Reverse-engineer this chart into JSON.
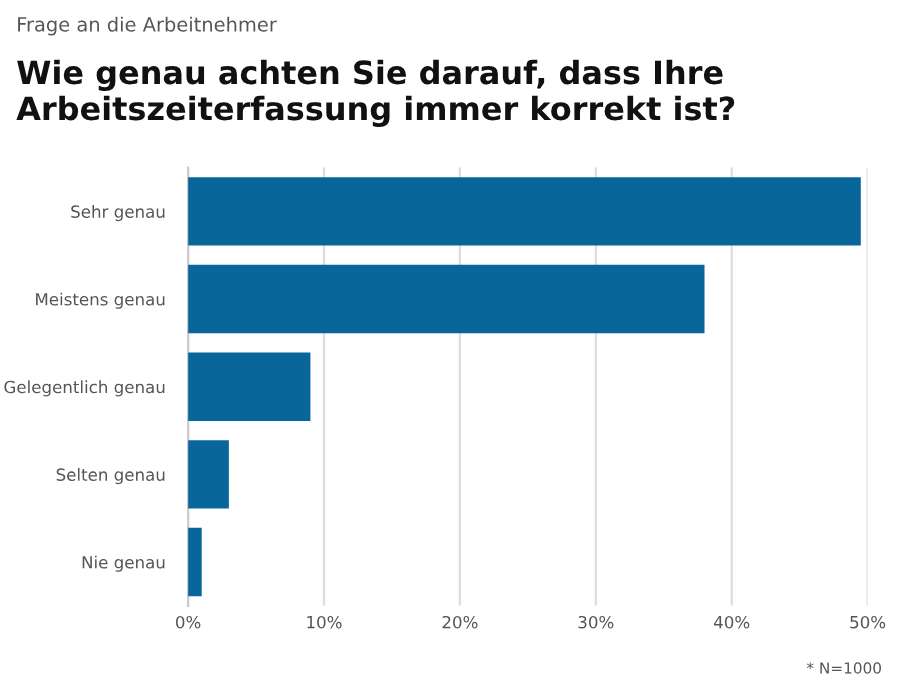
{
  "chart_data": {
    "type": "bar",
    "orientation": "horizontal",
    "subtitle": "Frage an die Arbeitnehmer",
    "title": "Wie genau achten Sie darauf, dass Ihre Arbeitszeiterfassung immer korrekt ist?",
    "categories": [
      "Sehr genau",
      "Meistens genau",
      "Gelegentlich genau",
      "Selten genau",
      "Nie genau"
    ],
    "values": [
      49.5,
      38,
      9,
      3,
      1
    ],
    "color": "#08669a",
    "xlim": [
      0,
      50
    ],
    "xticks": [
      {
        "value": 0,
        "label": "0%"
      },
      {
        "value": 10,
        "label": "10%"
      },
      {
        "value": 20,
        "label": "20%"
      },
      {
        "value": 30,
        "label": "30%"
      },
      {
        "value": 40,
        "label": "40%"
      },
      {
        "value": 50,
        "label": "50%"
      }
    ],
    "grid": "x",
    "annotations": [
      "* N=1000"
    ]
  }
}
